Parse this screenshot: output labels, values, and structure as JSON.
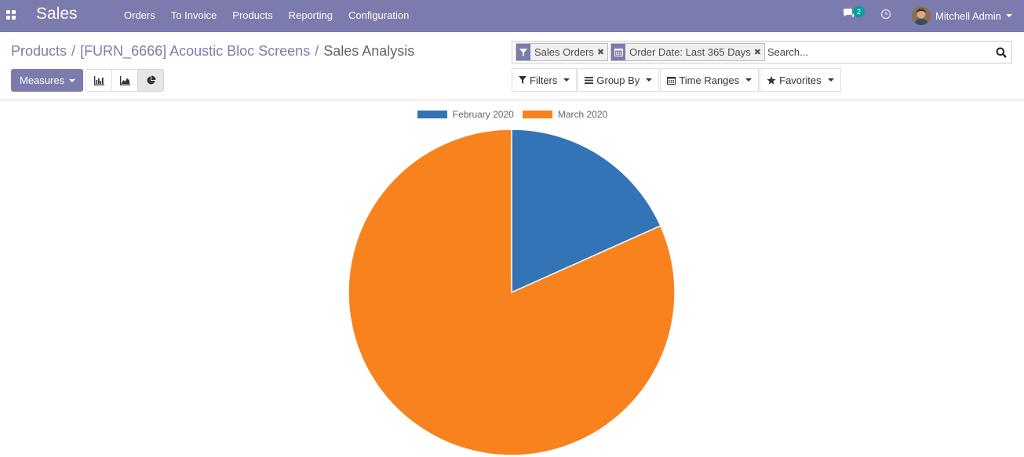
{
  "navbar": {
    "brand": "Sales",
    "menu": [
      "Orders",
      "To Invoice",
      "Products",
      "Reporting",
      "Configuration"
    ],
    "chat_count": "2",
    "user_name": "Mitchell Admin"
  },
  "breadcrumb": {
    "items": [
      "Products",
      "[FURN_6666] Acoustic Bloc Screens"
    ],
    "active": "Sales Analysis",
    "separator": "/"
  },
  "controls": {
    "measures_label": "Measures"
  },
  "search": {
    "facets": [
      {
        "icon": "filter-icon",
        "value": "Sales Orders"
      },
      {
        "icon": "calendar-icon",
        "value": "Order Date: Last 365 Days"
      }
    ],
    "placeholder": "Search..."
  },
  "search_options": {
    "filters": "Filters",
    "group_by": "Group By",
    "time_ranges": "Time Ranges",
    "favorites": "Favorites"
  },
  "colors": {
    "brand": "#7c7bad",
    "series_1": "#3274b6",
    "series_2": "#f8821e"
  },
  "chart_data": {
    "type": "pie",
    "labels": [
      "February 2020",
      "March 2020"
    ],
    "values": [
      18.3,
      81.7
    ],
    "colors": [
      "#3274b6",
      "#f8821e"
    ],
    "legend_position": "top"
  }
}
